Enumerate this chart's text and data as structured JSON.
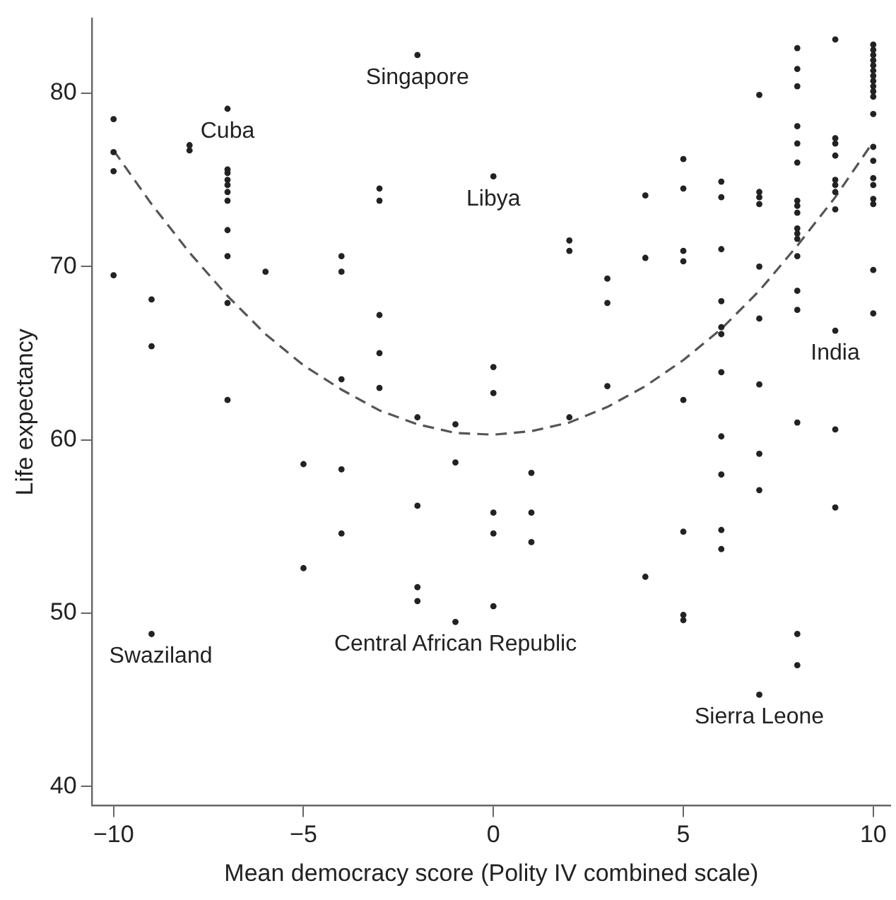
{
  "chart_data": {
    "type": "scatter",
    "xlabel": "Mean democracy score (Polity IV combined scale)",
    "ylabel": "Life expectancy",
    "xlim": [
      -10.56,
      10.45
    ],
    "ylim": [
      38.9,
      84.3
    ],
    "xticks": [
      -10,
      -5,
      0,
      5,
      10
    ],
    "yticks": [
      40,
      50,
      60,
      70,
      80
    ],
    "grid": false,
    "legend": false,
    "marker": "circle",
    "series": [
      {
        "type": "scatter",
        "color": "#222222",
        "x": [
          -10,
          -10,
          -10,
          -10,
          -9,
          -9,
          -9,
          -8,
          -8,
          -7,
          -7,
          -7,
          -7,
          -7,
          -7,
          -7,
          -7,
          -7,
          -7,
          -7,
          -6,
          -5,
          -5,
          -4,
          -4,
          -4,
          -4,
          -4,
          -3,
          -3,
          -3,
          -3,
          -3,
          -2,
          -2,
          -2,
          -2,
          -2,
          -1,
          -1,
          -1,
          0,
          0,
          0,
          0,
          0,
          0,
          1,
          1,
          1,
          2,
          2,
          2,
          3,
          3,
          3,
          4,
          4,
          4,
          5,
          5,
          5,
          5,
          5,
          5,
          5,
          5,
          6,
          6,
          6,
          6,
          6,
          6,
          6,
          6,
          6,
          6,
          6,
          7,
          7,
          7,
          7,
          7,
          7,
          7,
          7,
          7,
          7,
          8,
          8,
          8,
          8,
          8,
          8,
          8,
          8,
          8,
          8,
          8,
          8,
          8,
          8,
          8,
          8,
          8,
          8,
          9,
          9,
          9,
          9,
          9,
          9,
          9,
          9,
          9,
          9,
          9,
          10,
          10,
          10,
          10,
          10,
          10,
          10,
          10,
          10,
          10,
          10,
          10,
          10,
          10,
          10,
          10,
          10,
          10,
          10,
          10
        ],
        "values": [
          78.5,
          76.6,
          75.5,
          69.5,
          68.1,
          65.4,
          48.8,
          77.0,
          76.7,
          79.1,
          75.6,
          75.4,
          75.0,
          74.7,
          74.3,
          73.8,
          72.1,
          70.6,
          67.9,
          62.3,
          69.7,
          58.6,
          52.6,
          70.6,
          69.7,
          63.5,
          58.3,
          54.6,
          74.5,
          73.8,
          67.2,
          65.0,
          63.0,
          82.2,
          61.3,
          56.2,
          51.5,
          50.7,
          60.9,
          58.7,
          49.5,
          75.2,
          64.2,
          62.7,
          55.8,
          54.6,
          50.4,
          58.1,
          55.8,
          54.1,
          71.5,
          70.9,
          61.3,
          69.3,
          67.9,
          63.1,
          74.1,
          70.5,
          52.1,
          76.2,
          74.5,
          70.9,
          70.3,
          62.3,
          54.7,
          49.9,
          49.6,
          74.9,
          74.0,
          71.0,
          68.0,
          66.5,
          66.1,
          63.9,
          60.2,
          58.0,
          54.8,
          53.7,
          79.9,
          74.3,
          74.0,
          73.6,
          70.0,
          67.0,
          63.2,
          59.2,
          57.1,
          45.3,
          81.4,
          80.4,
          78.1,
          77.1,
          76.0,
          73.8,
          73.5,
          73.1,
          72.2,
          71.9,
          71.6,
          70.6,
          68.6,
          67.5,
          61.0,
          48.8,
          47.0,
          82.6,
          77.4,
          77.1,
          76.4,
          75.0,
          74.7,
          74.3,
          73.3,
          66.3,
          60.6,
          56.1,
          83.1,
          82.8,
          82.5,
          82.2,
          81.9,
          81.6,
          81.3,
          81.0,
          80.7,
          80.4,
          80.1,
          79.8,
          78.8,
          76.9,
          76.1,
          75.1,
          74.7,
          73.9,
          73.6,
          69.8,
          67.3
        ]
      },
      {
        "type": "line",
        "color": "#555555",
        "line_style": "dashed",
        "marker": "none",
        "x": [
          -10,
          -9,
          -8,
          -7,
          -6,
          -5,
          -4,
          -3,
          -2,
          -1,
          0,
          1,
          2,
          3,
          4,
          5,
          6,
          7,
          8,
          9,
          10
        ],
        "values": [
          76.7,
          73.6,
          70.8,
          68.3,
          66.1,
          64.3,
          62.9,
          61.7,
          60.9,
          60.4,
          60.3,
          60.5,
          61.0,
          61.9,
          63.1,
          64.6,
          66.4,
          68.6,
          71.2,
          74.0,
          77.2
        ]
      }
    ],
    "annotations": [
      {
        "text": "Singapore",
        "x": -2,
        "y": 82.2
      },
      {
        "text": "Cuba",
        "x": -7,
        "y": 79.1
      },
      {
        "text": "Libya",
        "x": 0,
        "y": 75.2
      },
      {
        "text": "India",
        "x": 9,
        "y": 66.3
      },
      {
        "text": "Swaziland",
        "x": -9,
        "y": 48.8
      },
      {
        "text": "Central African Republic",
        "x": -1,
        "y": 49.5
      },
      {
        "text": "Sierra Leone",
        "x": 7,
        "y": 45.3
      }
    ]
  }
}
